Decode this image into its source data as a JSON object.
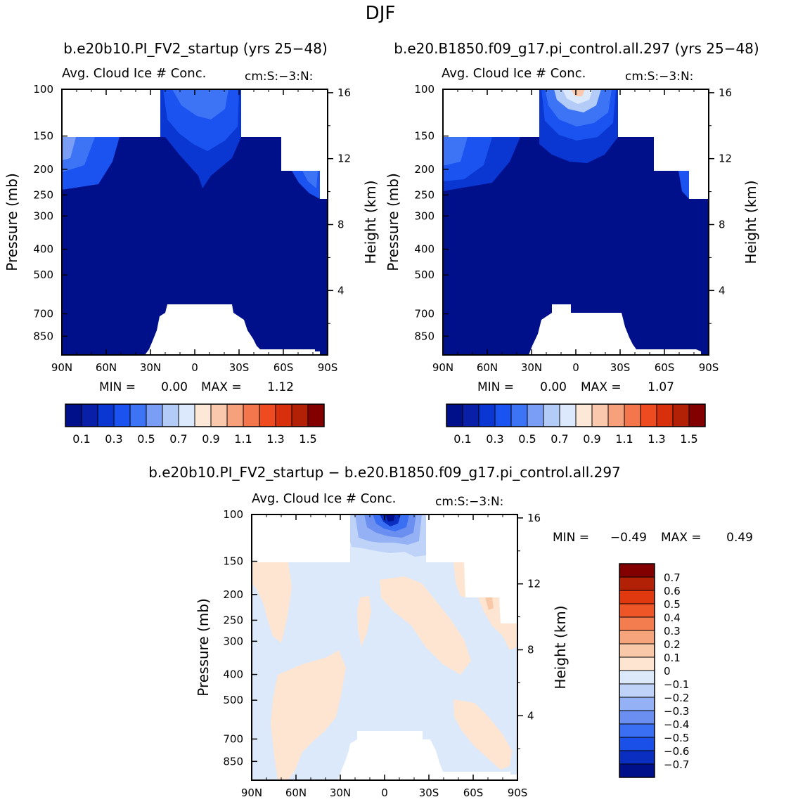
{
  "page": {
    "season": "DJF",
    "title_top_left": "b.e20b10.PI_FV2_startup (yrs 25−48)",
    "title_top_right": "b.e20.B1850.f09_g17.pi_control.all.297 (yrs 25−48)",
    "title_diff": "b.e20b10.PI_FV2_startup − b.e20.B1850.f09_g17.pi_control.all.297"
  },
  "colors": {
    "main_scale": [
      "#000f8a",
      "#0a1fa8",
      "#0a37d2",
      "#1a53f0",
      "#3d74f5",
      "#7a9ef5",
      "#b3cbf7",
      "#dce8fb",
      "#fde8d8",
      "#f9c8ad",
      "#f7a07c",
      "#f4764d",
      "#ee4b21",
      "#d8300d",
      "#b22006",
      "#820000"
    ],
    "diff_scale": [
      "#000f8a",
      "#0a2fc0",
      "#1a4fe8",
      "#3a6ff3",
      "#6b8ff0",
      "#95b1f5",
      "#bfd3f8",
      "#dce9fb",
      "#fde5d2",
      "#f8c8a8",
      "#f5a47c",
      "#f47d4f",
      "#ee5527",
      "#e0380f",
      "#b22006",
      "#820000"
    ],
    "white": "#ffffff"
  },
  "chart_data": [
    {
      "type": "heatmap",
      "title": "Avg. Cloud Ice # Conc.",
      "units": "cm:S:−3:N:",
      "xlabel": "",
      "ylabel": "Pressure (mb)",
      "ylabel_right": "Height (km)",
      "x_ticks": [
        "90N",
        "60N",
        "30N",
        "0",
        "30S",
        "60S",
        "90S"
      ],
      "y_ticks": [
        100,
        150,
        200,
        250,
        300,
        400,
        500,
        700,
        850
      ],
      "height_ticks": [
        16,
        12,
        8,
        4
      ],
      "min_label": "MIN =",
      "min_value": "0.00",
      "max_label": "MAX =",
      "max_value": "1.12",
      "colorbar_labels": [
        "0.1",
        "0.3",
        "0.5",
        "0.7",
        "0.9",
        "1.1",
        "1.3",
        "1.5"
      ]
    },
    {
      "type": "heatmap",
      "title": "Avg. Cloud Ice # Conc.",
      "units": "cm:S:−3:N:",
      "xlabel": "",
      "ylabel": "Pressure (mb)",
      "ylabel_right": "Height (km)",
      "x_ticks": [
        "90N",
        "60N",
        "30N",
        "0",
        "30S",
        "60S",
        "90S"
      ],
      "y_ticks": [
        100,
        150,
        200,
        250,
        300,
        400,
        500,
        700,
        850
      ],
      "height_ticks": [
        16,
        12,
        8,
        4
      ],
      "min_label": "MIN =",
      "min_value": "0.00",
      "max_label": "MAX =",
      "max_value": "1.07",
      "colorbar_labels": [
        "0.1",
        "0.3",
        "0.5",
        "0.7",
        "0.9",
        "1.1",
        "1.3",
        "1.5"
      ]
    },
    {
      "type": "heatmap",
      "title": "Avg. Cloud Ice # Conc.",
      "units": "cm:S:−3:N:",
      "xlabel": "",
      "ylabel": "Pressure (mb)",
      "ylabel_right": "Height (km)",
      "x_ticks": [
        "90N",
        "60N",
        "30N",
        "0",
        "30S",
        "60S",
        "90S"
      ],
      "y_ticks": [
        100,
        150,
        200,
        250,
        300,
        400,
        500,
        700,
        850
      ],
      "height_ticks": [
        16,
        12,
        8,
        4
      ],
      "min_label": "MIN =",
      "min_value": "−0.49",
      "max_label": "MAX =",
      "max_value": "0.49",
      "colorbar_labels": [
        "0.7",
        "0.6",
        "0.5",
        "0.4",
        "0.3",
        "0.2",
        "0.1",
        "0",
        "−0.1",
        "−0.2",
        "−0.3",
        "−0.4",
        "−0.5",
        "−0.6",
        "−0.7"
      ]
    }
  ]
}
